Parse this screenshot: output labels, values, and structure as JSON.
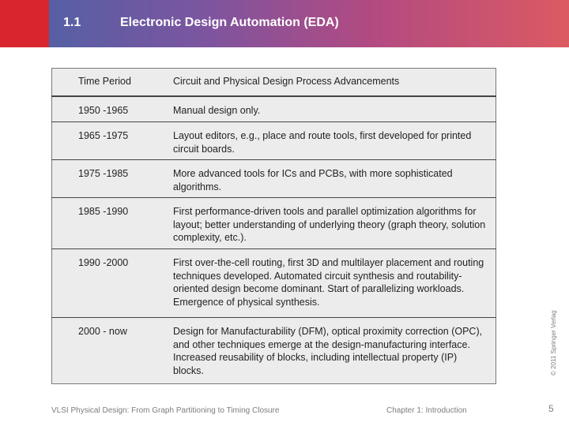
{
  "header": {
    "section_number": "1.1",
    "title": "Electronic Design Automation (EDA)"
  },
  "table": {
    "headers": [
      "Time Period",
      "Circuit and Physical Design Process Advancements"
    ],
    "rows": [
      {
        "period": "1950 -1965",
        "advancement": "Manual design only."
      },
      {
        "period": "1965 -1975",
        "advancement": "Layout editors, e.g., place and route tools, first developed for printed circuit boards."
      },
      {
        "period": "1975 -1985",
        "advancement": "More advanced tools for ICs and PCBs, with more sophisticated algorithms."
      },
      {
        "period": "1985 -1990",
        "advancement": "First performance-driven tools and parallel optimization algorithms for layout; better understanding of underlying theory (graph theory, solution complexity, etc.)."
      },
      {
        "period": "1990 -2000",
        "advancement": "First over-the-cell routing, first 3D and multilayer placement and routing techniques developed. Automated circuit synthesis and routability-oriented design become dominant. Start of parallelizing workloads. Emergence of physical synthesis."
      },
      {
        "period": "2000 - now",
        "advancement": "Design for Manufacturability (DFM), optical proximity correction (OPC), and other techniques emerge at the design-manufacturing interface. Increased reusability of blocks, including intellectual property (IP) blocks."
      }
    ]
  },
  "footer": {
    "book_title": "VLSI Physical Design: From Graph Partitioning to Timing Closure",
    "chapter": "Chapter 1: Introduction",
    "page_number": "5",
    "copyright": "© 2011 Springer Verlag"
  }
}
